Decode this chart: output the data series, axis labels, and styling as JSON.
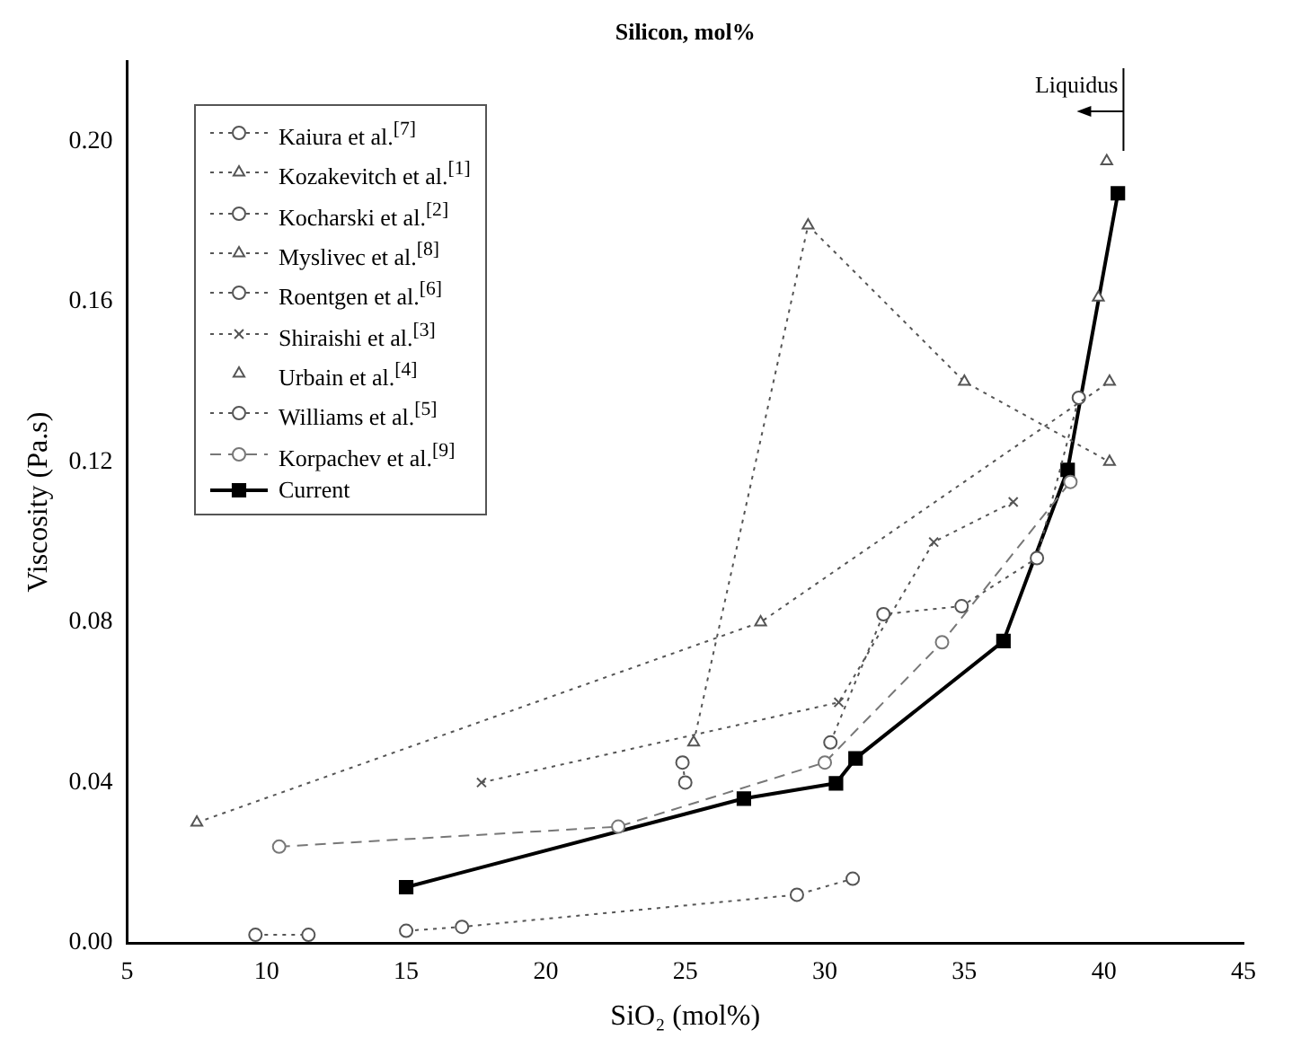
{
  "chart_data": {
    "type": "line",
    "x2label": "Silicon, mol%",
    "xlabel": "SiO₂ (mol%)",
    "ylabel": "Viscosity (Pa.s)",
    "xlim": [
      5,
      45
    ],
    "xticks": [
      5,
      10,
      15,
      20,
      25,
      30,
      35,
      40,
      45
    ],
    "ylim": [
      0,
      0.22
    ],
    "yticks": [
      {
        "value": 0,
        "label": "0.00"
      },
      {
        "value": 0.04,
        "label": "0.04"
      },
      {
        "value": 0.08,
        "label": "0.08"
      },
      {
        "value": 0.12,
        "label": "0.12"
      },
      {
        "value": 0.16,
        "label": "0.16"
      },
      {
        "value": 0.2,
        "label": "0.20"
      }
    ],
    "grid": false,
    "legend": "top left",
    "ref_lines": [
      {
        "axis": "x",
        "value": 40.7,
        "label": "Liquidus"
      }
    ],
    "series": [
      {
        "name": "Kaiura et al.$^{[7]}$",
        "color": "#555555",
        "marker": "circle",
        "line_style": "dotted",
        "x": [
          24.9,
          25.0
        ],
        "values": [
          0.045,
          0.04
        ]
      },
      {
        "name": "Kozakevitch et al.$^{[1]}$",
        "color": "#555555",
        "marker": "triangle",
        "line_style": "dotted",
        "x": [
          7.5,
          27.7,
          40.2
        ],
        "values": [
          0.03,
          0.08,
          0.14
        ]
      },
      {
        "name": "Kocharski et al.$^{[2]}$",
        "color": "#555555",
        "marker": "circle",
        "line_style": "dotted",
        "x": [
          30.2,
          32.1,
          34.9,
          37.6,
          39.1
        ],
        "values": [
          0.05,
          0.082,
          0.084,
          0.096,
          0.136
        ]
      },
      {
        "name": "Myslivec et al.$^{[8]}$",
        "color": "#555555",
        "marker": "triangle",
        "line_style": "dotted",
        "x": [
          25.3,
          29.4,
          35.0,
          40.2
        ],
        "values": [
          0.05,
          0.179,
          0.14,
          0.12
        ]
      },
      {
        "name": "Roentgen et al.$^{[6]}$",
        "color": "#555555",
        "marker": "circle",
        "line_style": "dotted",
        "x": [
          15,
          17,
          29,
          31
        ],
        "values": [
          0.003,
          0.004,
          0.012,
          0.016
        ]
      },
      {
        "name": "Shiraishi et al.$^{[3]}$",
        "color": "#555555",
        "marker": "cross",
        "line_style": "dotted",
        "x": [
          17.7,
          30.5,
          33.9,
          36.75
        ],
        "values": [
          0.04,
          0.06,
          0.1,
          0.11
        ]
      },
      {
        "name": "Urbain et al.$^{[4]}$",
        "type": "scatter",
        "color": "#555555",
        "marker": "triangle",
        "x": [
          39.8,
          40.1
        ],
        "values": [
          0.161,
          0.195
        ]
      },
      {
        "name": "Williams et al.$^{[5]}$",
        "color": "#555555",
        "marker": "circle",
        "line_style": "dotted",
        "x": [
          9.6,
          11.5
        ],
        "values": [
          0.002,
          0.002
        ]
      },
      {
        "name": "Korpachev et al.$^{[9]}$",
        "color": "#777777",
        "marker": "circle",
        "line_style": "dashed",
        "x": [
          10.45,
          22.6,
          30.0,
          34.2,
          38.8
        ],
        "values": [
          0.024,
          0.029,
          0.045,
          0.075,
          0.115
        ]
      },
      {
        "name": "Current",
        "color": "#000000",
        "marker": "square",
        "line_style": "solid",
        "x": [
          15,
          27.1,
          30.4,
          31.1,
          36.4,
          38.7,
          40.5
        ],
        "values": [
          0.0139,
          0.036,
          0.0398,
          0.046,
          0.0753,
          0.118,
          0.187
        ]
      }
    ]
  }
}
